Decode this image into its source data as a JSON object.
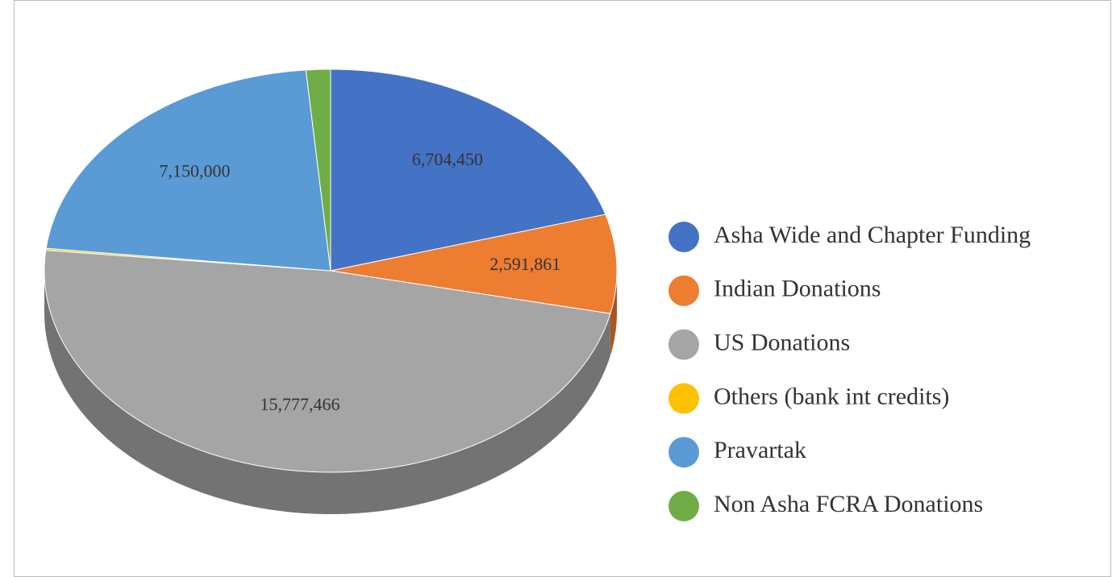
{
  "chart_data": {
    "type": "pie3d",
    "categories": [
      "Asha Wide and Chapter Funding",
      "Indian Donations",
      "US Donations",
      "Others (bank int credits)",
      "Pravartak",
      "Non Asha FCRA Donations"
    ],
    "values": [
      6704450,
      2591861,
      15777466,
      50000,
      7150000,
      450000
    ],
    "value_labels": [
      "6,704,450",
      "2,591,861",
      "15,777,466",
      null,
      "7,150,000",
      null
    ],
    "colors": [
      "#4472c4",
      "#ed7d31",
      "#a5a5a5",
      "#ffc000",
      "#5b9bd5",
      "#70ad47"
    ],
    "legend": "right"
  }
}
